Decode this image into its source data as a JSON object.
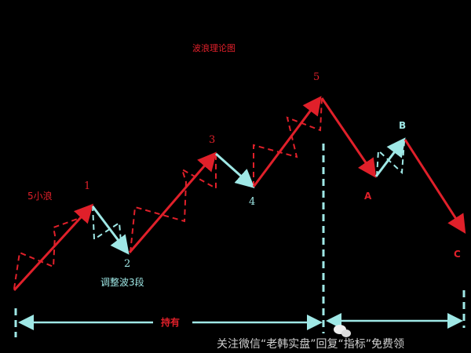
{
  "title": "波浪理论图",
  "labels": {
    "five_small_waves": "5小浪",
    "correction_three": "调整波3段",
    "w1": "1",
    "w2": "2",
    "w3": "3",
    "w4": "4",
    "w5": "5",
    "wA": "A",
    "wB": "B",
    "wC": "C"
  },
  "hold_label": "持有",
  "caption": "关注微信“老韩实盘”回复“指标”免费领",
  "colors": {
    "impulse": "#e0202a",
    "correction": "#9fe8e6",
    "background": "#000000"
  }
}
